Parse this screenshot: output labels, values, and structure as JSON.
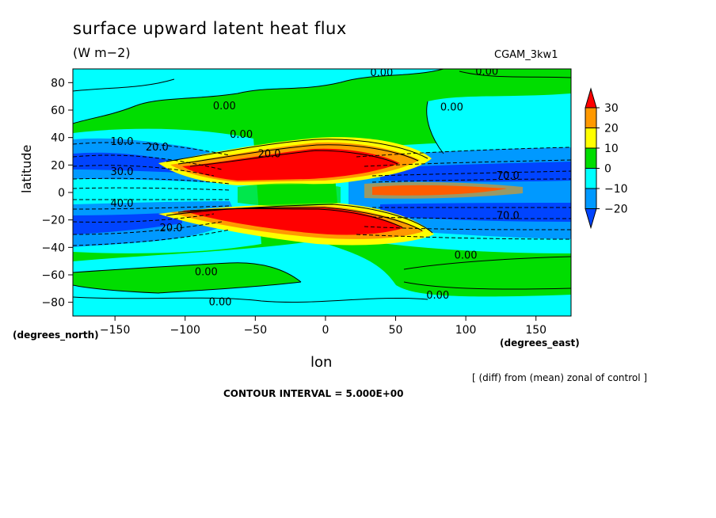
{
  "chart_data": {
    "type": "heatmap",
    "title": "surface upward latent heat flux",
    "units": "(W m−2)",
    "run_label": "CGAM_3kw1",
    "xlabel": "lon",
    "ylabel": "latitude",
    "x_units_label": "(degrees_east)",
    "y_units_label": "(degrees_north)",
    "xlim": [
      -180,
      175
    ],
    "ylim": [
      -90,
      90
    ],
    "x_ticks": [
      -150,
      -100,
      -50,
      0,
      50,
      100,
      150
    ],
    "x_tick_labels": [
      "−150",
      "−100",
      "−50",
      "0",
      "50",
      "100",
      "150"
    ],
    "y_ticks": [
      80,
      60,
      40,
      20,
      0,
      -20,
      -40,
      -60,
      -80
    ],
    "y_tick_labels": [
      "80",
      "60",
      "40",
      "20",
      "0",
      "−20",
      "−40",
      "−60",
      "−80"
    ],
    "colorbar": {
      "levels": [
        30,
        20,
        10,
        0,
        -10,
        -20
      ],
      "level_labels": [
        "30",
        "20",
        "10",
        "0",
        "−10",
        "−20"
      ],
      "colors": [
        "#ff0000",
        "#ff9900",
        "#ffff00",
        "#00dd00",
        "#00ffff",
        "#0099ff",
        "#0044ff"
      ]
    },
    "contour_labels": [
      {
        "text": "0.00",
        "lon": 40,
        "lat": 87
      },
      {
        "text": "0.00",
        "lon": 115,
        "lat": 88
      },
      {
        "text": "0.00",
        "lon": -72,
        "lat": 63
      },
      {
        "text": "0.00",
        "lon": 90,
        "lat": 62
      },
      {
        "text": "0.00",
        "lon": -60,
        "lat": 42
      },
      {
        "text": "10.0",
        "lon": -145,
        "lat": 37
      },
      {
        "text": "20.0",
        "lon": -120,
        "lat": 33
      },
      {
        "text": "20.0",
        "lon": -40,
        "lat": 28
      },
      {
        "text": "30.0",
        "lon": -145,
        "lat": 15
      },
      {
        "text": "70.0",
        "lon": 130,
        "lat": 12
      },
      {
        "text": "40.0",
        "lon": -145,
        "lat": -8
      },
      {
        "text": "70.0",
        "lon": 130,
        "lat": -17
      },
      {
        "text": "20.0",
        "lon": -110,
        "lat": -26
      },
      {
        "text": "0.00",
        "lon": 100,
        "lat": -46
      },
      {
        "text": "0.00",
        "lon": -85,
        "lat": -58
      },
      {
        "text": "0.00",
        "lon": 80,
        "lat": -75
      },
      {
        "text": "0.00",
        "lon": -75,
        "lat": -80
      }
    ],
    "legend_note": "[ (diff) from (mean) zonal of control ]",
    "contour_interval": "CONTOUR INTERVAL = 5.000E+00"
  }
}
